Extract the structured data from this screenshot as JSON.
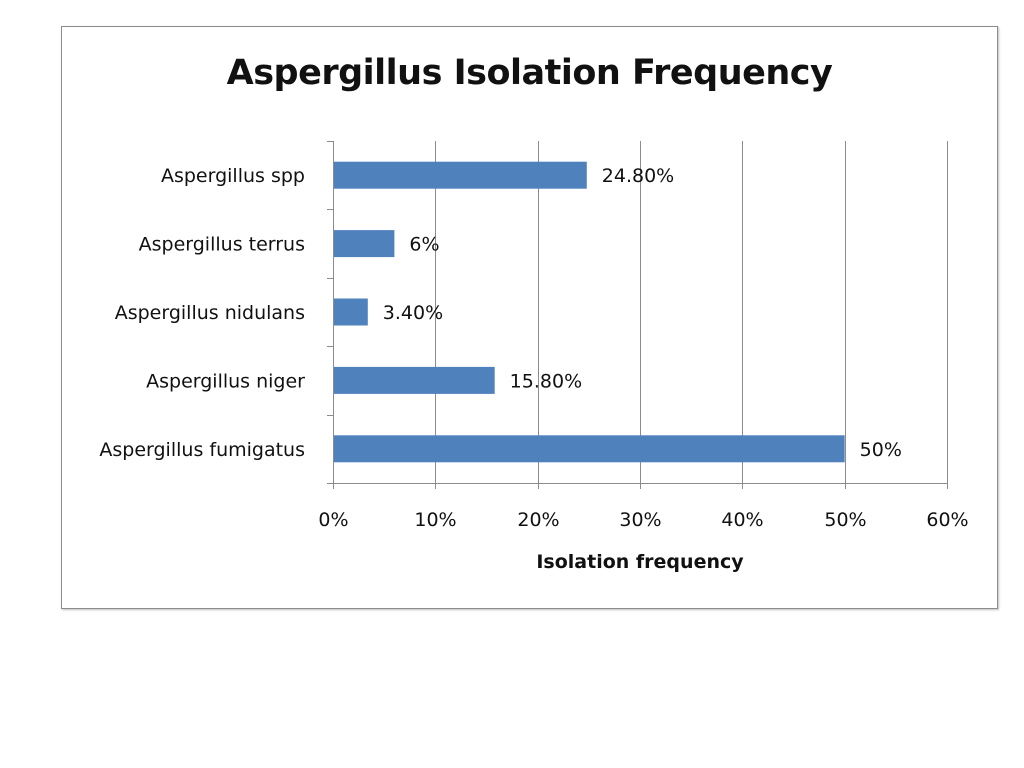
{
  "chart_data": {
    "type": "bar",
    "orientation": "horizontal",
    "title": "Aspergillus Isolation Frequency",
    "xlabel": "Isolation frequency",
    "ylabel": "",
    "categories": [
      "Aspergillus fumigatus",
      "Aspergillus niger",
      "Aspergillus nidulans",
      "Aspergillus terrus",
      "Aspergillus spp"
    ],
    "values": [
      50,
      15.8,
      3.4,
      6,
      24.8
    ],
    "data_labels": [
      "50%",
      "15.80%",
      "3.40%",
      "6%",
      "24.80%"
    ],
    "xlim": [
      0,
      60
    ],
    "x_ticks": [
      0,
      10,
      20,
      30,
      40,
      50,
      60
    ],
    "x_tick_labels": [
      "0%",
      "10%",
      "20%",
      "30%",
      "40%",
      "50%",
      "60%"
    ],
    "grid": "vertical",
    "legend": "none",
    "bar_color": "#4f81bd",
    "grid_color": "#8c8c8c"
  }
}
